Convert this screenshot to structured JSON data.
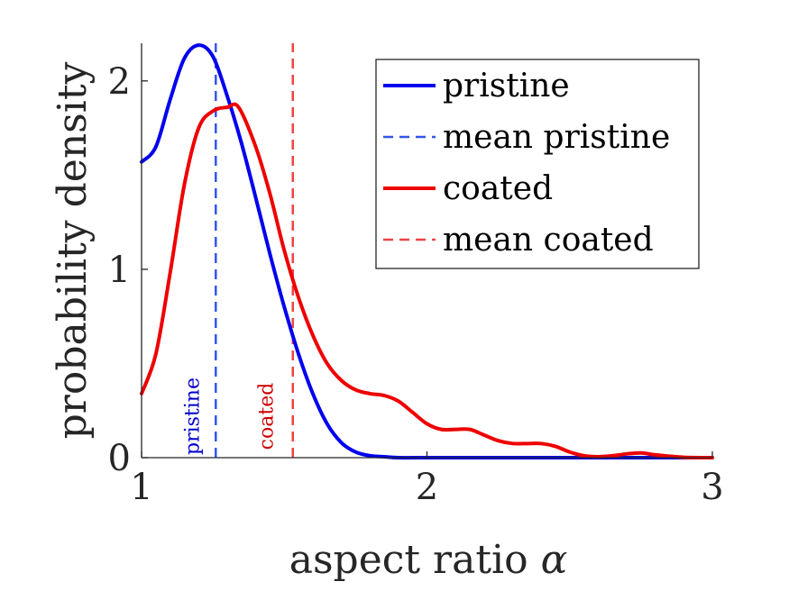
{
  "chart_data": {
    "type": "line",
    "title": "",
    "xlabel": "aspect ratio",
    "xlabel_symbol": "α",
    "ylabel": "probability density",
    "xlim": [
      1,
      3
    ],
    "ylim": [
      0,
      2.2
    ],
    "xticks": [
      1,
      2,
      3
    ],
    "xtick_labels": [
      "1",
      "2",
      "3"
    ],
    "yticks": [
      0,
      1,
      2
    ],
    "ytick_labels": [
      "0",
      "1",
      "2"
    ],
    "grid": false,
    "legend_position": "top-right",
    "series": [
      {
        "name": "pristine",
        "style": "solid",
        "color": "#0000ee",
        "x": [
          1.0,
          1.05,
          1.1,
          1.15,
          1.2,
          1.25,
          1.3,
          1.35,
          1.4,
          1.45,
          1.5,
          1.55,
          1.6,
          1.65,
          1.7,
          1.75,
          1.8,
          1.85,
          1.9,
          2.0,
          2.2,
          2.5,
          3.0
        ],
        "y": [
          1.57,
          1.65,
          1.9,
          2.12,
          2.19,
          2.13,
          1.92,
          1.67,
          1.38,
          1.08,
          0.8,
          0.55,
          0.34,
          0.18,
          0.08,
          0.03,
          0.01,
          0.005,
          0.0,
          0.0,
          0.0,
          0.0,
          0.0
        ]
      },
      {
        "name": "mean pristine",
        "style": "dashed",
        "color": "#3355ee",
        "x": [
          1.26,
          1.26
        ],
        "y": [
          0,
          2.2
        ]
      },
      {
        "name": "coated",
        "style": "solid",
        "color": "#ee0000",
        "x": [
          1.0,
          1.05,
          1.1,
          1.15,
          1.2,
          1.25,
          1.3,
          1.34,
          1.4,
          1.45,
          1.5,
          1.55,
          1.6,
          1.65,
          1.7,
          1.75,
          1.8,
          1.85,
          1.9,
          1.95,
          2.0,
          2.05,
          2.1,
          2.15,
          2.2,
          2.25,
          2.3,
          2.35,
          2.4,
          2.45,
          2.5,
          2.55,
          2.6,
          2.65,
          2.7,
          2.75,
          2.8,
          2.9,
          3.0
        ],
        "y": [
          0.34,
          0.55,
          0.98,
          1.45,
          1.75,
          1.84,
          1.86,
          1.86,
          1.65,
          1.4,
          1.1,
          0.85,
          0.65,
          0.5,
          0.41,
          0.36,
          0.34,
          0.33,
          0.3,
          0.24,
          0.18,
          0.15,
          0.15,
          0.15,
          0.12,
          0.09,
          0.075,
          0.075,
          0.075,
          0.06,
          0.03,
          0.01,
          0.005,
          0.01,
          0.02,
          0.025,
          0.015,
          0.002,
          0.0
        ]
      },
      {
        "name": "mean coated",
        "style": "dashed",
        "color": "#ee4444",
        "x": [
          1.53,
          1.53
        ],
        "y": [
          0,
          2.2
        ]
      }
    ],
    "annotations": [
      {
        "text": "pristine",
        "x": 1.2,
        "y": 0.22,
        "rotation": -90,
        "color": "#0000cc"
      },
      {
        "text": "coated",
        "x": 1.46,
        "y": 0.22,
        "rotation": -90,
        "color": "#cc0000"
      }
    ]
  }
}
